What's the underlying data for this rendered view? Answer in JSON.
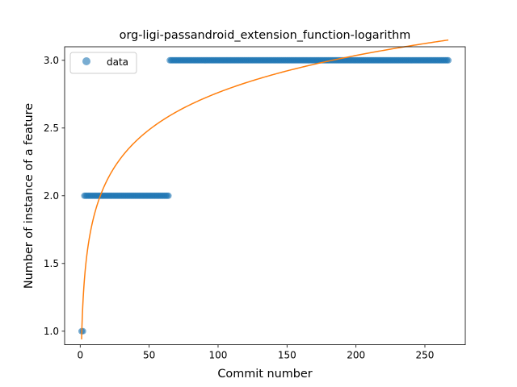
{
  "chart_data": {
    "type": "scatter",
    "title": "org-ligi-passandroid_extension_function-logarithm",
    "xlabel": "Commit number",
    "ylabel": "Number of instance of a feature",
    "xlim": [
      -11.3,
      279.3
    ],
    "ylim": [
      0.9,
      3.1
    ],
    "xticks": [
      0,
      50,
      100,
      150,
      200,
      250
    ],
    "yticks": [
      1.0,
      1.5,
      2.0,
      2.5,
      3.0
    ],
    "xtick_labels": [
      "0",
      "50",
      "100",
      "150",
      "200",
      "250"
    ],
    "ytick_labels": [
      "1.0",
      "1.5",
      "2.0",
      "2.5",
      "3.0"
    ],
    "grid": false,
    "legend": {
      "placement": "top-left",
      "entries": [
        "data"
      ]
    },
    "colors": {
      "data": "#1f77b4",
      "fit": "#ff7f0e"
    },
    "series": [
      {
        "name": "data",
        "kind": "scatter",
        "segments": [
          {
            "x_start": 1,
            "x_end": 2,
            "y": 1
          },
          {
            "x_start": 3,
            "x_end": 64,
            "y": 2
          },
          {
            "x_start": 65,
            "x_end": 267,
            "y": 3
          }
        ]
      },
      {
        "kind": "line",
        "function": "logarithm",
        "x_range": [
          1,
          267
        ],
        "sample_points": [
          [
            1,
            0.94
          ],
          [
            16,
            2.0
          ],
          [
            60,
            2.53
          ],
          [
            100,
            2.73
          ],
          [
            200,
            3.02
          ],
          [
            267,
            3.15
          ]
        ]
      }
    ]
  }
}
